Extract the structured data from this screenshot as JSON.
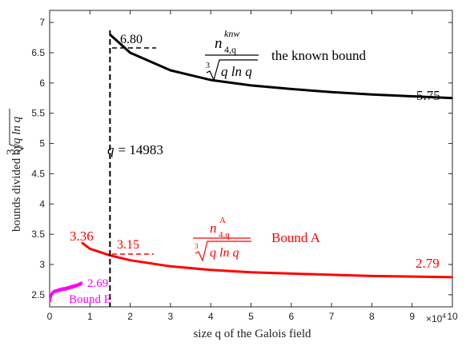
{
  "chart_data": {
    "type": "line",
    "xlabel": "size q of the Galois field",
    "ylabel_prefix": "bounds divided by",
    "ylabel_root_index": "3",
    "ylabel_radicand": "q ln q",
    "x_multiplier": "×10",
    "x_multiplier_exp": "4",
    "xlim": [
      0,
      100000
    ],
    "ylim": [
      2.3,
      7.2
    ],
    "xticks": [
      0,
      10000,
      20000,
      30000,
      40000,
      50000,
      60000,
      70000,
      80000,
      90000,
      100000
    ],
    "xtick_labels": [
      "0",
      "1",
      "2",
      "3",
      "4",
      "5",
      "6",
      "7",
      "8",
      "9",
      "10"
    ],
    "yticks": [
      2.5,
      3,
      3.5,
      4,
      4.5,
      5,
      5.5,
      6,
      6.5,
      7
    ],
    "ytick_labels": [
      "2.5",
      "3",
      "3.5",
      "4",
      "4.5",
      "5",
      "5.5",
      "6",
      "6.5",
      "7"
    ],
    "grid": false,
    "series": [
      {
        "name": "the known bound",
        "color": "#000000",
        "x": [
          14983,
          20000,
          30000,
          40000,
          50000,
          60000,
          70000,
          80000,
          90000,
          100000
        ],
        "y": [
          6.8,
          6.5,
          6.21,
          6.05,
          5.96,
          5.9,
          5.85,
          5.81,
          5.78,
          5.75
        ]
      },
      {
        "name": "Bound A",
        "color": "#ff0000",
        "x": [
          8000,
          10000,
          14983,
          20000,
          30000,
          40000,
          50000,
          60000,
          70000,
          80000,
          90000,
          100000
        ],
        "y": [
          3.36,
          3.26,
          3.15,
          3.07,
          2.97,
          2.91,
          2.87,
          2.85,
          2.83,
          2.81,
          2.8,
          2.79
        ]
      },
      {
        "name": "Bound E",
        "color": "#ff00ff",
        "x": [
          100,
          500,
          1000,
          2000,
          3000,
          4000,
          5000,
          6000,
          7000,
          8000
        ],
        "y": [
          2.4,
          2.52,
          2.55,
          2.57,
          2.59,
          2.6,
          2.62,
          2.64,
          2.66,
          2.69
        ]
      }
    ],
    "vline": {
      "x": 14983,
      "label_lhs": "q",
      "label_rhs": "= 14983"
    },
    "annotations": {
      "known_start": "6.80",
      "known_end": "5.75",
      "A_start": "3.36",
      "A_at_vline": "3.15",
      "A_end": "2.79",
      "E_end": "2.69",
      "known_formula": {
        "base": "n",
        "sub": "4,q",
        "sup": "knw",
        "root_index": "3",
        "radicand": "q ln q"
      },
      "known_label": "the known bound",
      "A_formula": {
        "base": "n",
        "sub": "4,q",
        "sup": "A",
        "root_index": "3",
        "radicand": "q ln q"
      },
      "A_label": "Bound A",
      "E_label": "Bound E"
    }
  }
}
